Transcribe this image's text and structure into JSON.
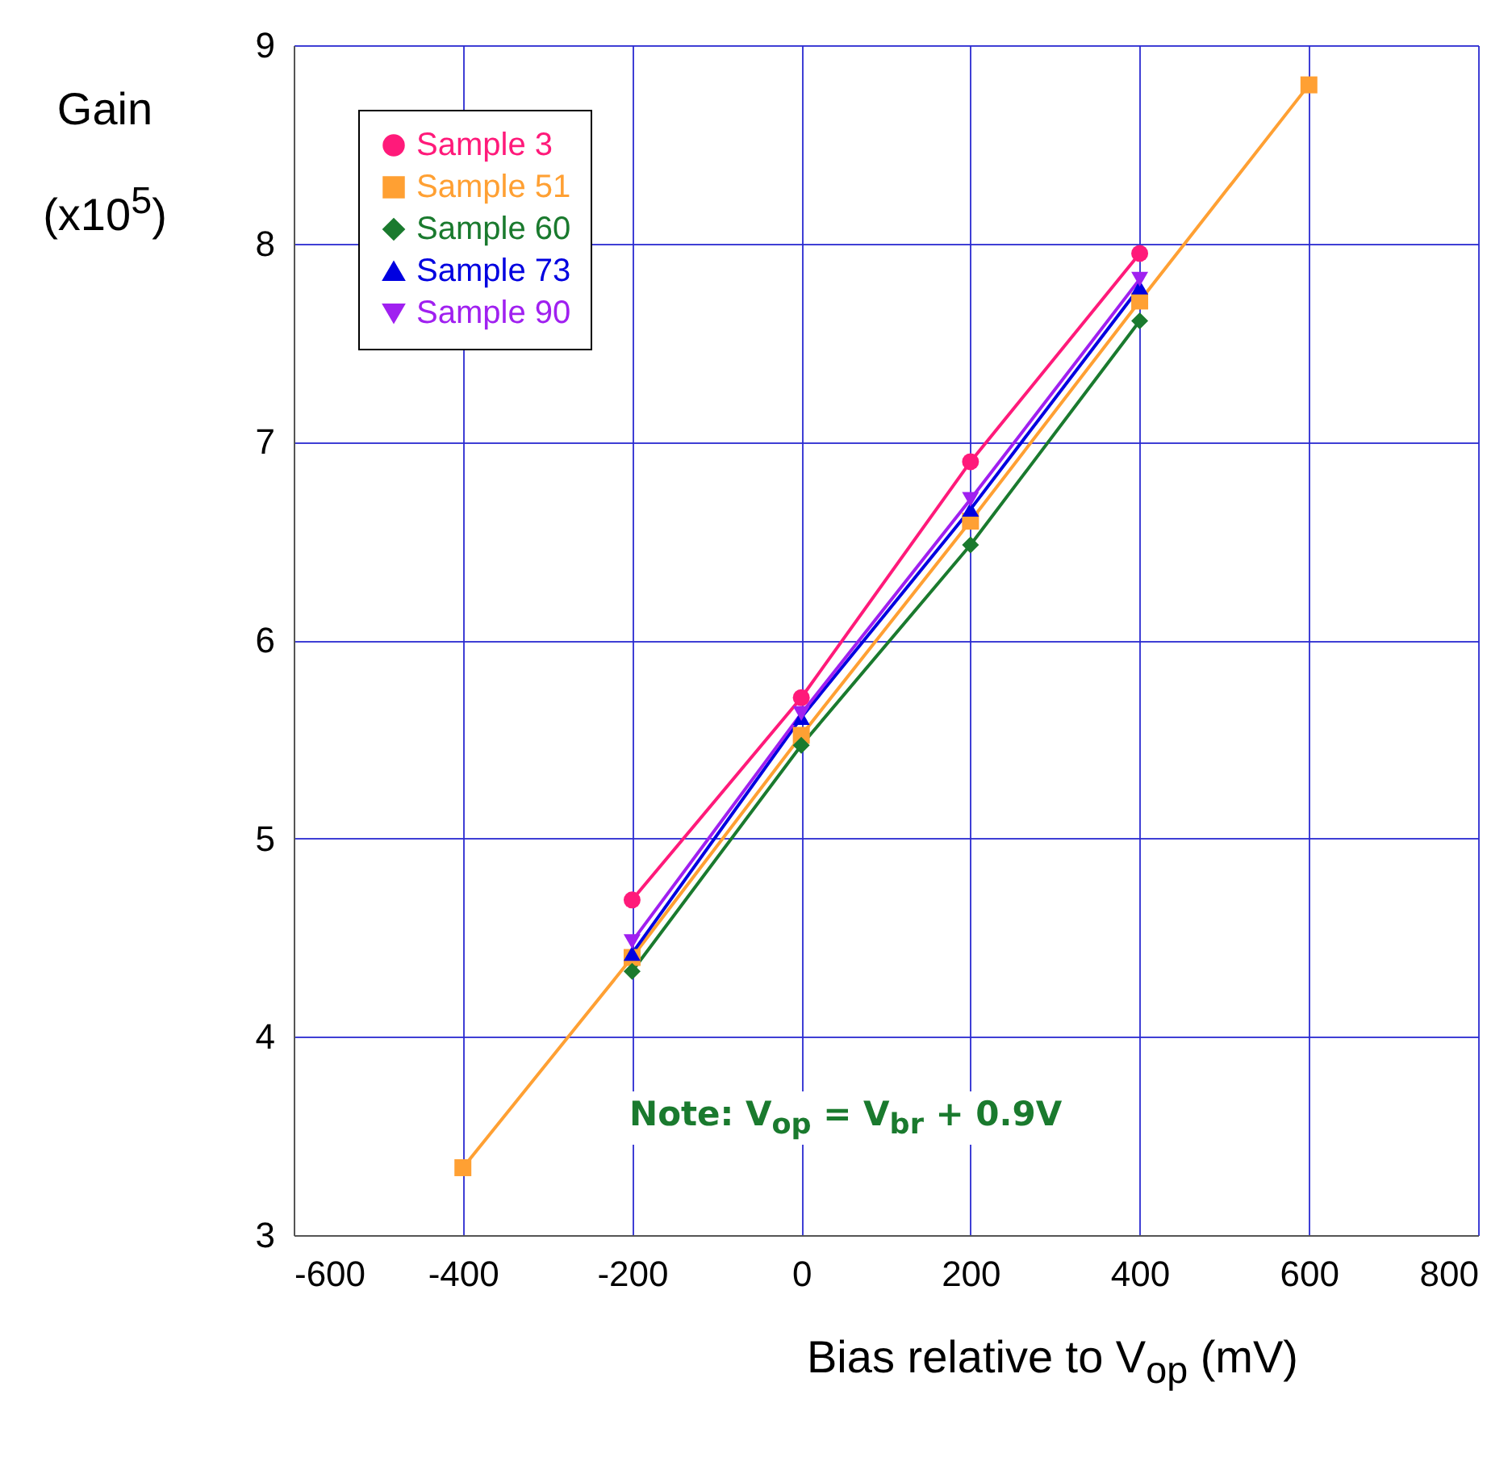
{
  "chart_data": {
    "type": "line",
    "xlabel": "Bias relative to V$_{op}$ (mV)",
    "ylabel": "Gain (x10$^{5}$)",
    "annotations": [
      "Note: V$_{op}$ = V$_{br}$ + 0.9V"
    ],
    "xlim": [
      -600,
      800
    ],
    "xticks": [
      -600,
      -400,
      -200,
      0,
      200,
      400,
      600,
      800
    ],
    "ylim": [
      3,
      9
    ],
    "yticks": [
      3,
      4,
      5,
      6,
      7,
      8,
      9
    ],
    "grid": true,
    "legend": "top left",
    "line_style": "solid",
    "series": [
      {
        "name": "Sample 3",
        "color": "#ff1a7a",
        "marker": "circle",
        "x": [
          -200,
          0,
          200,
          400
        ],
        "values": [
          4.69,
          5.71,
          6.9,
          7.95
        ]
      },
      {
        "name": "Sample 51",
        "color": "#ffa033",
        "marker": "square",
        "x": [
          -400,
          -200,
          0,
          200,
          400,
          600
        ],
        "values": [
          3.34,
          4.4,
          5.52,
          6.6,
          7.71,
          8.8
        ]
      },
      {
        "name": "Sample 60",
        "color": "#1a7a2e",
        "marker": "diamond",
        "x": [
          -200,
          0,
          200,
          400
        ],
        "values": [
          4.33,
          5.47,
          6.48,
          7.61
        ]
      },
      {
        "name": "Sample 73",
        "color": "#0000e0",
        "marker": "triangle",
        "x": [
          -200,
          0,
          200,
          400
        ],
        "values": [
          4.42,
          5.61,
          6.66,
          7.78
        ]
      },
      {
        "name": "Sample 90",
        "color": "#a020f0",
        "marker": "triangle-down",
        "x": [
          -200,
          0,
          200,
          400
        ],
        "values": [
          4.48,
          5.63,
          6.71,
          7.82
        ]
      }
    ]
  }
}
